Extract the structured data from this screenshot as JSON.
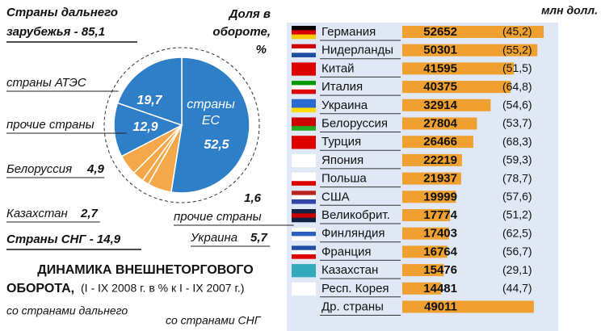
{
  "chart_data": [
    {
      "type": "pie",
      "title_lines": [
        "Страны дальнего",
        "зарубежья - 85,1"
      ],
      "share_label_lines": [
        "Доля в",
        "обороте,",
        "%"
      ],
      "cis_title": "Страны СНГ - 14,9",
      "categories": [
        "страны ЕС",
        "Украина",
        "прочие страны",
        "Казахстан",
        "Белоруссия",
        "прочие страны",
        "страны АТЭС"
      ],
      "values": [
        52.5,
        5.7,
        1.6,
        2.7,
        4.9,
        12.9,
        19.7
      ],
      "value_labels": [
        "52,5",
        "5,7",
        "1,6",
        "2,7",
        "4,9",
        "12,9",
        "19,7"
      ],
      "colors": [
        "#2f7fc8",
        "#f5a84a",
        "#f5a84a",
        "#f5a84a",
        "#f5a84a",
        "#2f7fc8",
        "#2f7fc8"
      ],
      "dynamics_title_lines": [
        "ДИНАМИКА ВНЕШНЕТОРГОВОГО",
        "ОБОРОТА,"
      ],
      "dynamics_subtitle": "(I - IX 2008 г. в % к I - IX 2007 г.)",
      "dynamics_labels": [
        "со странами дальнего",
        "со странами СНГ"
      ]
    },
    {
      "type": "barh",
      "unit": "млн долл.",
      "categories": [
        "Германия",
        "Нидерланды",
        "Китай",
        "Италия",
        "Украина",
        "Белоруссия",
        "Турция",
        "Япония",
        "Польша",
        "США",
        "Великобрит.",
        "Финляндия",
        "Франция",
        "Казахстан",
        "Респ. Корея",
        "Др. страны"
      ],
      "series": [
        {
          "name": null,
          "color": "#f0a030",
          "values": [
            52652,
            50301,
            41595,
            40375,
            32914,
            27804,
            26466,
            22219,
            21937,
            19999,
            17774,
            17403,
            16764,
            15476,
            14481,
            49011
          ]
        },
        {
          "name": null,
          "values": [
            45.2,
            55.2,
            51.5,
            64.8,
            54.6,
            53.7,
            68.3,
            59.3,
            78.7,
            57.6,
            51.2,
            62.5,
            56.7,
            29.1,
            44.7,
            null
          ],
          "value_labels": [
            "(45,2)",
            "(55,2)",
            "(51,5)",
            "(64,8)",
            "(54,6)",
            "(53,7)",
            "(68,3)",
            "(59,3)",
            "(78,7)",
            "(57,6)",
            "(51,2)",
            "(62,5)",
            "(56,7)",
            "(29,1)",
            "(44,7)",
            null
          ]
        }
      ]
    }
  ]
}
